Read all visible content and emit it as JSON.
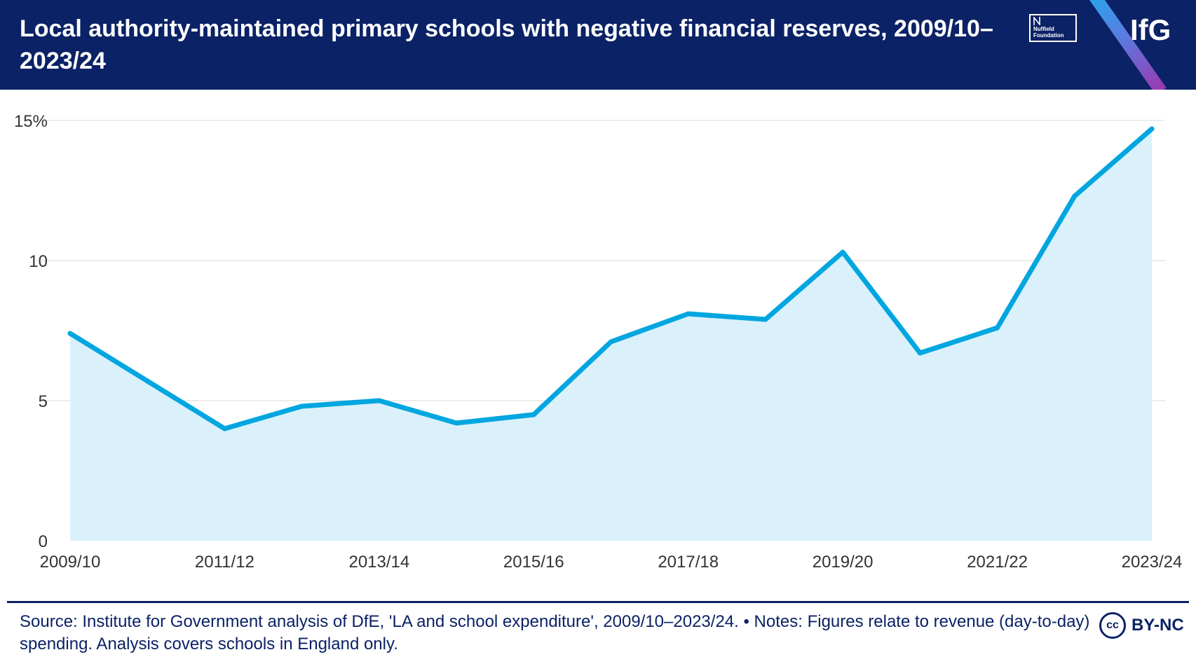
{
  "header": {
    "title": "Local authority-maintained primary schools with negative financial reserves, 2009/10–2023/24",
    "partner_logo": "Nuffield Foundation",
    "brand_logo": "IfG"
  },
  "colors": {
    "header_bg": "#0b2266",
    "line": "#00a6e0",
    "area": "#daf1fb",
    "grid": "#e6e6e6"
  },
  "chart_data": {
    "type": "area",
    "title": "Local authority-maintained primary schools with negative financial reserves, 2009/10–2023/24",
    "xlabel": "",
    "ylabel": "",
    "x": [
      "2009/10",
      "2010/11",
      "2011/12",
      "2012/13",
      "2013/14",
      "2014/15",
      "2015/16",
      "2016/17",
      "2017/18",
      "2018/19",
      "2019/20",
      "2020/21",
      "2021/22",
      "2022/23",
      "2023/24"
    ],
    "values": [
      7.4,
      5.7,
      4.0,
      4.8,
      5.0,
      4.2,
      4.5,
      7.1,
      8.1,
      7.9,
      10.3,
      6.7,
      7.6,
      12.3,
      14.7
    ],
    "x_tick_labels": [
      "2009/10",
      "2011/12",
      "2013/14",
      "2015/16",
      "2017/18",
      "2019/20",
      "2021/22",
      "2023/24"
    ],
    "y_ticks": [
      0,
      5,
      10,
      15
    ],
    "y_tick_labels": [
      "0",
      "5",
      "10",
      "15%"
    ],
    "ylim": [
      0,
      15
    ],
    "grid": true
  },
  "footer": {
    "source": "Source: Institute for Government analysis of DfE, 'LA and school expenditure', 2009/10–2023/24. • Notes: Figures relate to revenue (day-to-day) spending. Analysis covers schools in England only.",
    "license_badge": "cc",
    "license": "BY-NC"
  }
}
